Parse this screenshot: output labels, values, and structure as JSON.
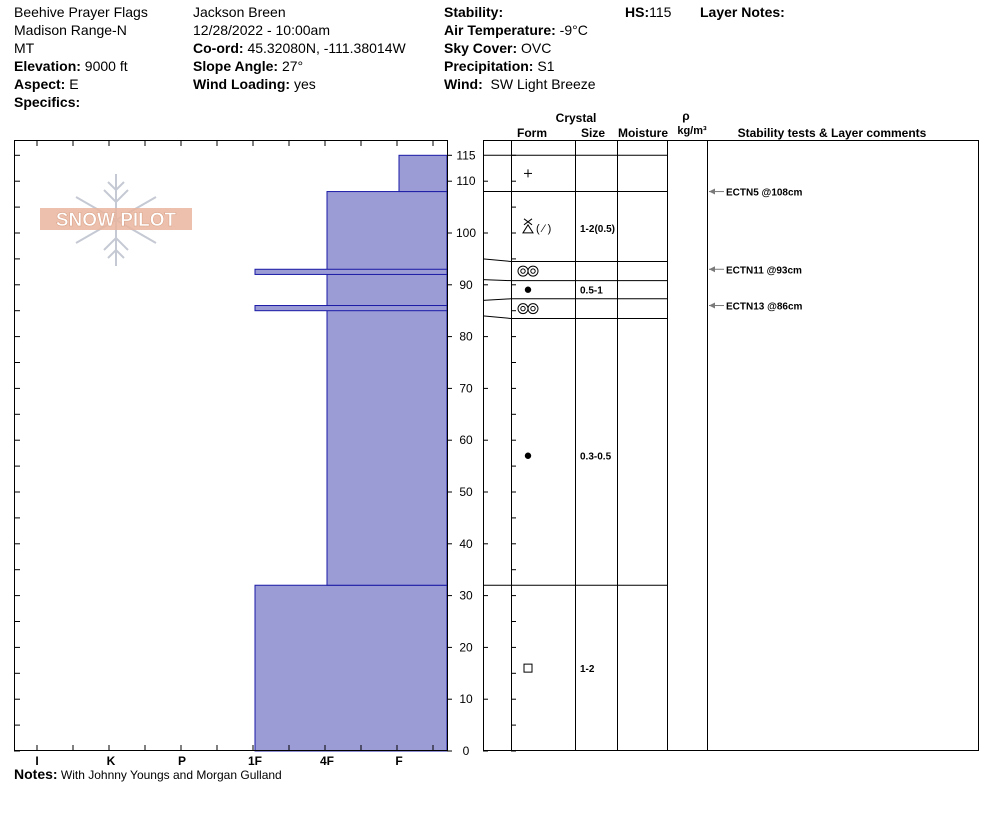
{
  "header": {
    "location": "Beehive Prayer Flags",
    "range": "Madison Range-N",
    "state": "MT",
    "elevation_label": "Elevation:",
    "elevation": "9000 ft",
    "aspect_label": "Aspect:",
    "aspect": "E",
    "specifics_label": "Specifics:",
    "observer": "Jackson Breen",
    "datetime": "12/28/2022 - 10:00am",
    "coord_label": "Co-ord:",
    "coord": "45.32080N, -111.38014W",
    "slope_label": "Slope Angle:",
    "slope": "27°",
    "wind_loading_label": "Wind Loading:",
    "wind_loading": "yes",
    "stability_label": "Stability:",
    "air_temp_label": "Air Temperature:",
    "air_temp": "-9°C",
    "sky_label": "Sky Cover:",
    "sky": "OVC",
    "precip_label": "Precipitation:",
    "precip": "S1",
    "wind_label": "Wind:",
    "wind": "SW Light Breeze",
    "hs_label": "HS:",
    "hs": "115",
    "layer_notes_label": "Layer Notes:"
  },
  "logo": {
    "text": "SNOW PILOT"
  },
  "notes": {
    "label": "Notes:",
    "text": "With Johnny Youngs and Morgan Gulland"
  },
  "table_headers": {
    "crystal": "Crystal",
    "form": "Form",
    "size": "Size",
    "moisture": "Moisture",
    "rho": "ρ",
    "density_unit": "kg/m³",
    "stability": "Stability tests & Layer comments"
  },
  "chart_data": {
    "type": "bar",
    "hardness_scale": [
      "I",
      "K",
      "P",
      "1F",
      "4F",
      "F"
    ],
    "ylim": [
      0,
      118
    ],
    "y_ticks": [
      0,
      10,
      20,
      30,
      40,
      50,
      60,
      70,
      80,
      90,
      100,
      110,
      115
    ],
    "hardness_layers": [
      {
        "bottom": 0,
        "top": 32,
        "hardness": "1F"
      },
      {
        "bottom": 32,
        "top": 108,
        "hardness": "4F"
      },
      {
        "bottom": 108,
        "top": 115,
        "hardness": "F"
      },
      {
        "bottom": 92,
        "top": 93,
        "hardness": "1F"
      },
      {
        "bottom": 85,
        "top": 86,
        "hardness": "1F"
      }
    ],
    "layer_boundaries": [
      115,
      108,
      94.5,
      90.8,
      87.3,
      83.5,
      32
    ],
    "layers": [
      {
        "top": 115,
        "bottom": 108,
        "form": "precip-particles",
        "size": ""
      },
      {
        "top": 108,
        "bottom": 94.5,
        "form": "faceted-rounded",
        "size": "1-2(0.5)"
      },
      {
        "top": 94.5,
        "bottom": 90.8,
        "form": "melt-freeze-crust",
        "size": ""
      },
      {
        "top": 90.8,
        "bottom": 87.3,
        "form": "rounded-grains",
        "size": "0.5-1"
      },
      {
        "top": 87.3,
        "bottom": 83.5,
        "form": "melt-freeze-crust",
        "size": ""
      },
      {
        "top": 83.5,
        "bottom": 32,
        "form": "rounded-grains",
        "size": "0.3-0.5"
      },
      {
        "top": 32,
        "bottom": 0,
        "form": "faceted-crystals",
        "size": "1-2"
      }
    ],
    "stability_tests": [
      {
        "depth": 108,
        "label": "ECTN5 @108cm"
      },
      {
        "depth": 93,
        "label": "ECTN11 @93cm"
      },
      {
        "depth": 86,
        "label": "ECTN13 @86cm"
      }
    ],
    "colors": {
      "fill": "#9b9bd6",
      "stroke": "#1a1aa6",
      "arrow": "#7a7a7a",
      "logo": "#e9b59e"
    }
  }
}
